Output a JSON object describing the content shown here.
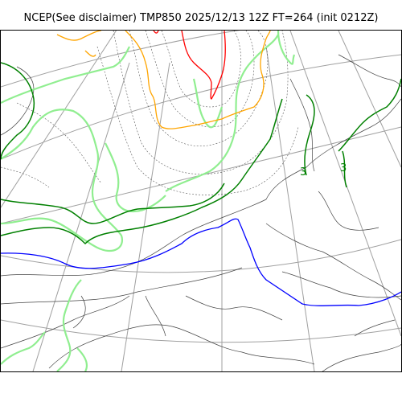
{
  "title": "NCEP(See disclaimer) TMP850 2025/12/13 12Z FT=264 (init 0212Z)",
  "legend": {
    "colors": {
      "graticule": "#a0a0a0",
      "coastline": "#333333",
      "cold_isotherm_blue": "#0000ff",
      "isotherm_dark_green": "#008000",
      "isotherm_light_green": "#90ee90",
      "isotherm_orange": "#ffa500",
      "isotherm_red": "#ff0000",
      "dashed_contour": "#555555"
    }
  },
  "contour_labels": [
    {
      "text": "3",
      "color": "#008000"
    },
    {
      "text": "3",
      "color": "#008000"
    }
  ]
}
